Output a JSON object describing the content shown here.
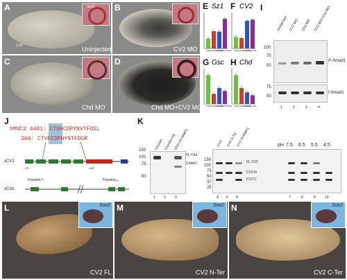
{
  "panels": {
    "A": {
      "label": "A",
      "caption": "Uninjected",
      "inset_gene": "Sox2",
      "cv2_note": "CV2"
    },
    "B": {
      "label": "B",
      "caption": "CV2 MO"
    },
    "C": {
      "label": "C",
      "caption": "Chd MO"
    },
    "D": {
      "label": "D",
      "caption": "Chd MO+CV2 MO"
    },
    "E": {
      "label": "E",
      "gene": "Sz1"
    },
    "F": {
      "label": "F",
      "gene": "CV2"
    },
    "G": {
      "label": "G",
      "gene": "Gsc"
    },
    "H": {
      "label": "H",
      "gene": "Chd"
    },
    "I": {
      "label": "I",
      "lanes": [
        "Uninjected",
        "CV2 MO",
        "Chd MO",
        "CV2 MO+Chd MO"
      ],
      "band_top": "P-Smad1",
      "band_bottom": "t-Smad1",
      "mw_top": [
        "100",
        "75",
        "50"
      ],
      "mw_bottom": [
        "75",
        "50"
      ],
      "lane_numbers": [
        "1",
        "2",
        "3",
        "4"
      ]
    },
    "J": {
      "label": "J",
      "seq1": "hMUC2 4481: CTGHCDPYNVTFDSL",
      "seq2": "366: CTVFCDPHYNTFDGR",
      "row1": "xCV2",
      "row2": "xChd",
      "cr": "CR",
      "vwf": "vWF",
      "tag1": "Frizzled₁²⁵",
      "tag2": "Frizzled₁₆₀"
    },
    "K": {
      "label": "K",
      "lanes_left": [
        "Chordin",
        "Chordin+Xlr",
        "Chd+Xlr+BMP1"
      ],
      "ann1": "FL Chd",
      "ann2": "ChdΔC",
      "lanes_mid": [
        "CV2",
        "CV2 N-Ter",
        "CV2 N+BMP1"
      ],
      "ann3": "FL CV2",
      "ann4": "CV2 N",
      "ann5": "CV2 C",
      "ph_label": "pH",
      "ph_values": [
        "7.5",
        "6.5",
        "5.5",
        "4.5"
      ],
      "mw_left": [
        "150",
        "100",
        "75",
        "50"
      ],
      "mw_mid": [
        "150",
        "100",
        "75",
        "50",
        "37",
        "25"
      ],
      "lane_numbers": [
        "1",
        "2",
        "3",
        "4",
        "5",
        "6",
        "7",
        "8",
        "9",
        "10"
      ]
    },
    "L": {
      "label": "L",
      "caption": "CV2 FL",
      "inset_gene": "Sox2"
    },
    "M": {
      "label": "M",
      "caption": "CV2 N-Ter",
      "inset_gene": "Sox2"
    },
    "N": {
      "label": "N",
      "caption": "CV2 C-Ter",
      "inset_gene": "Sox2"
    }
  },
  "chart_data": [
    {
      "type": "bar",
      "title": "Sz1",
      "categories": [
        "Uninj",
        "CV2 MO",
        "Chd MO",
        "Chd MO+CV2 MO"
      ],
      "values": [
        1.0,
        1.75,
        1.7,
        3.0
      ],
      "ylim": [
        0,
        3.5
      ],
      "colors": [
        "#6ac23c",
        "#d63a2f",
        "#2f4fc7",
        "#8a2a9e"
      ]
    },
    {
      "type": "bar",
      "title": "CV2",
      "categories": [
        "Uninj",
        "CV2 MO",
        "Chd MO",
        "Chd MO+CV2 MO"
      ],
      "values": [
        1.0,
        0.9,
        2.4,
        2.5
      ],
      "ylim": [
        0,
        3.0
      ],
      "colors": [
        "#6ac23c",
        "#d63a2f",
        "#2f4fc7",
        "#8a2a9e"
      ]
    },
    {
      "type": "bar",
      "title": "Gsc",
      "categories": [
        "Uninj",
        "CV2 MO",
        "Chd MO",
        "Chd MO+CV2 MO"
      ],
      "values": [
        1.0,
        0.35,
        0.55,
        0.45
      ],
      "ylim": [
        0,
        1.2
      ],
      "colors": [
        "#6ac23c",
        "#d63a2f",
        "#2f4fc7",
        "#8a2a9e"
      ]
    },
    {
      "type": "bar",
      "title": "Chd",
      "categories": [
        "Uninj",
        "CV2 MO",
        "Chd MO",
        "Chd MO+CV2 MO"
      ],
      "values": [
        1.0,
        0.55,
        0.4,
        0.3
      ],
      "ylim": [
        0,
        1.2
      ],
      "colors": [
        "#6ac23c",
        "#d63a2f",
        "#2f4fc7",
        "#8a2a9e"
      ]
    }
  ]
}
